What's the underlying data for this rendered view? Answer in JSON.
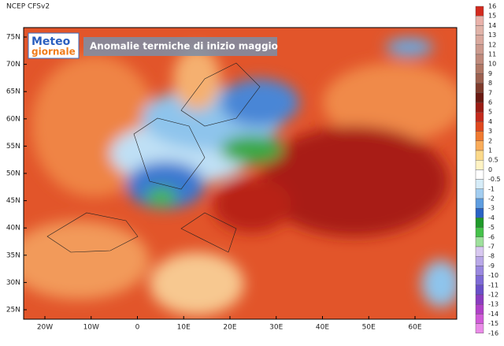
{
  "header": {
    "model": "NCEP  CFSv2"
  },
  "logo": {
    "line1": "Meteo",
    "line2": "giornale"
  },
  "title": "Anomalie termiche di inizio maggio",
  "lat_labels": [
    "75N",
    "70N",
    "65N",
    "60N",
    "55N",
    "50N",
    "45N",
    "40N",
    "35N",
    "30N",
    "25N"
  ],
  "lon_labels": [
    "20W",
    "10W",
    "0",
    "10E",
    "20E",
    "30E",
    "40E",
    "50E",
    "60E"
  ],
  "colorbar": {
    "levels": [
      16,
      15,
      14,
      13,
      12,
      11,
      10,
      9,
      8,
      7,
      6,
      5,
      4,
      3,
      2,
      1,
      0.5,
      0,
      -0.5,
      -1,
      -2,
      -3,
      -4,
      -5,
      -6,
      -7,
      -8,
      -9,
      -10,
      -11,
      -12,
      -13,
      -14,
      -15,
      -16
    ],
    "colors": [
      "#d22a1e",
      "#e9b2aa",
      "#e0b3a8",
      "#d9a89d",
      "#cc9a8e",
      "#bf8a7c",
      "#b07866",
      "#9c6150",
      "#7e3b2c",
      "#6a1a12",
      "#9a1c14",
      "#c42a1c",
      "#e0481e",
      "#f07a30",
      "#f9ac5a",
      "#fbd98a",
      "#fff3c4",
      "#ffffff",
      "#d6ecf8",
      "#a2cdf0",
      "#5e9de0",
      "#2a63c4",
      "#1f9a2a",
      "#45c24a",
      "#9ee09c",
      "#d8c8f0",
      "#b9a8e8",
      "#9a88e0",
      "#7e6ad6",
      "#6a4fc8",
      "#8a3cc0",
      "#b040c8",
      "#d05ad8",
      "#ea8ae8"
    ]
  }
}
